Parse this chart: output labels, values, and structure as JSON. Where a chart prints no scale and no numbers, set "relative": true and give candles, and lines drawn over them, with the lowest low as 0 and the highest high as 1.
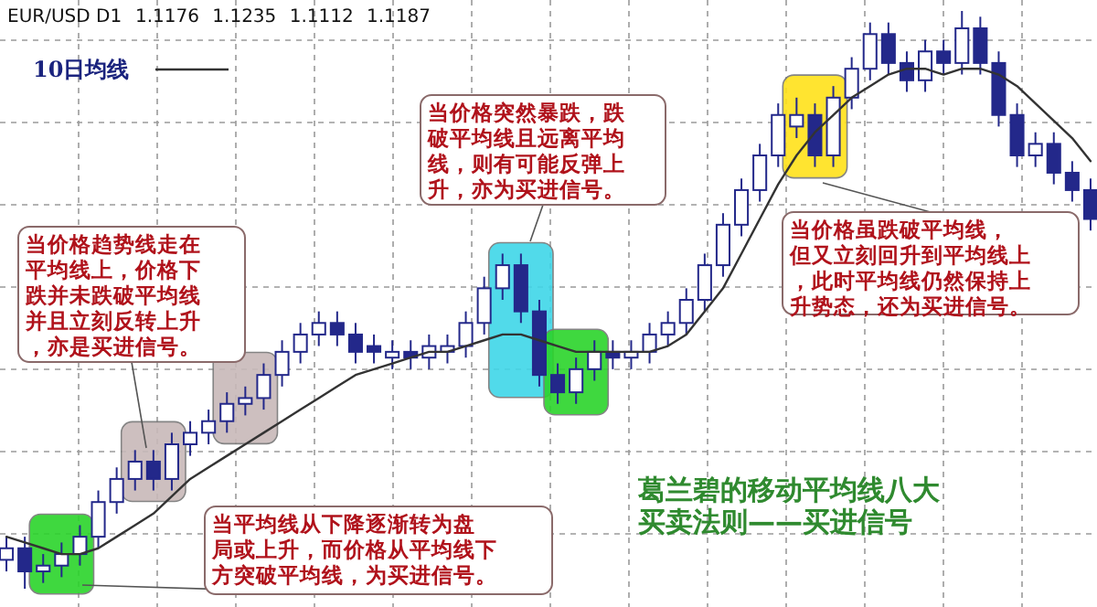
{
  "chart_data": {
    "type": "candlestick",
    "title": "EUR/USD D1",
    "subtitle": "1.1176 1.1235 1.1112 1.1187",
    "relative": true,
    "grid": true,
    "legend": "top left",
    "categories": [
      null,
      null,
      null,
      null,
      null,
      null,
      null,
      null,
      null,
      null,
      null,
      null,
      null,
      null,
      null,
      null,
      null,
      null,
      null,
      null,
      null,
      null,
      null,
      null,
      null,
      null,
      null,
      null,
      null,
      null,
      null,
      null,
      null,
      null,
      null,
      null,
      null,
      null,
      null,
      null,
      null,
      null,
      null,
      null,
      null,
      null,
      null,
      null,
      null,
      null,
      null,
      null,
      null,
      null,
      null,
      null,
      null,
      null,
      null,
      null
    ],
    "series": [
      {
        "color": "#23288a",
        "ohlc": [
          [
            0.05,
            0.09,
            0.03,
            0.07
          ],
          [
            0.07,
            0.09,
            0,
            0.03
          ],
          [
            0.03,
            0.06,
            0.01,
            0.04
          ],
          [
            0.04,
            0.08,
            0.02,
            0.06
          ],
          [
            0.06,
            0.11,
            0.04,
            0.09
          ],
          [
            0.09,
            0.17,
            0.07,
            0.15
          ],
          [
            0.15,
            0.21,
            0.13,
            0.19
          ],
          [
            0.19,
            0.24,
            0.17,
            0.22
          ],
          [
            0.22,
            0.24,
            0.17,
            0.19
          ],
          [
            0.19,
            0.27,
            0.17,
            0.25
          ],
          [
            0.25,
            0.29,
            0.23,
            0.27
          ],
          [
            0.27,
            0.31,
            0.25,
            0.29
          ],
          [
            0.29,
            0.34,
            0.27,
            0.32
          ],
          [
            0.32,
            0.35,
            0.3,
            0.33
          ],
          [
            0.33,
            0.39,
            0.31,
            0.37
          ],
          [
            0.37,
            0.43,
            0.35,
            0.41
          ],
          [
            0.41,
            0.46,
            0.39,
            0.44
          ],
          [
            0.44,
            0.48,
            0.42,
            0.46
          ],
          [
            0.46,
            0.48,
            0.42,
            0.44
          ],
          [
            0.44,
            0.46,
            0.39,
            0.41
          ],
          [
            0.42,
            0.44,
            0.39,
            0.41
          ],
          [
            0.4,
            0.43,
            0.38,
            0.41
          ],
          [
            0.41,
            0.43,
            0.38,
            0.4
          ],
          [
            0.4,
            0.44,
            0.38,
            0.42
          ],
          [
            0.41,
            0.44,
            0.39,
            0.42
          ],
          [
            0.42,
            0.48,
            0.4,
            0.46
          ],
          [
            0.46,
            0.54,
            0.44,
            0.52
          ],
          [
            0.52,
            0.58,
            0.5,
            0.56
          ],
          [
            0.56,
            0.58,
            0.46,
            0.48
          ],
          [
            0.48,
            0.5,
            0.35,
            0.37
          ],
          [
            0.37,
            0.39,
            0.32,
            0.34
          ],
          [
            0.34,
            0.4,
            0.32,
            0.38
          ],
          [
            0.38,
            0.43,
            0.36,
            0.41
          ],
          [
            0.41,
            0.43,
            0.38,
            0.4
          ],
          [
            0.4,
            0.43,
            0.38,
            0.41
          ],
          [
            0.41,
            0.46,
            0.39,
            0.44
          ],
          [
            0.44,
            0.48,
            0.42,
            0.46
          ],
          [
            0.46,
            0.52,
            0.44,
            0.5
          ],
          [
            0.5,
            0.58,
            0.48,
            0.56
          ],
          [
            0.56,
            0.65,
            0.54,
            0.63
          ],
          [
            0.63,
            0.71,
            0.61,
            0.69
          ],
          [
            0.69,
            0.77,
            0.67,
            0.75
          ],
          [
            0.75,
            0.84,
            0.73,
            0.82
          ],
          [
            0.8,
            0.85,
            0.78,
            0.82
          ],
          [
            0.82,
            0.84,
            0.73,
            0.75
          ],
          [
            0.75,
            0.87,
            0.73,
            0.85
          ],
          [
            0.85,
            0.92,
            0.83,
            0.9
          ],
          [
            0.9,
            0.98,
            0.88,
            0.96
          ],
          [
            0.96,
            0.98,
            0.89,
            0.91
          ],
          [
            0.91,
            0.93,
            0.86,
            0.88
          ],
          [
            0.88,
            0.95,
            0.86,
            0.93
          ],
          [
            0.93,
            0.95,
            0.89,
            0.91
          ],
          [
            0.91,
            1,
            0.89,
            0.97
          ],
          [
            0.97,
            0.99,
            0.89,
            0.91
          ],
          [
            0.91,
            0.93,
            0.8,
            0.82
          ],
          [
            0.82,
            0.84,
            0.73,
            0.75
          ],
          [
            0.75,
            0.79,
            0.73,
            0.77
          ],
          [
            0.77,
            0.79,
            0.7,
            0.72
          ],
          [
            0.72,
            0.74,
            0.67,
            0.69
          ],
          [
            0.69,
            0.71,
            0.62,
            0.64
          ]
        ]
      },
      {
        "type": "line",
        "name": "10日均线",
        "color": "#333333",
        "values": [
          0.09,
          0.08,
          0.07,
          0.06,
          0.06,
          0.07,
          0.09,
          0.11,
          0.13,
          0.16,
          0.19,
          0.21,
          0.23,
          0.25,
          0.27,
          0.29,
          0.31,
          0.33,
          0.35,
          0.37,
          0.38,
          0.39,
          0.4,
          0.41,
          0.41,
          0.42,
          0.43,
          0.44,
          0.44,
          0.43,
          0.42,
          0.41,
          0.41,
          0.41,
          0.41,
          0.41,
          0.42,
          0.44,
          0.48,
          0.52,
          0.58,
          0.64,
          0.7,
          0.75,
          0.79,
          0.82,
          0.85,
          0.87,
          0.89,
          0.9,
          0.9,
          0.89,
          0.9,
          0.9,
          0.89,
          0.87,
          0.84,
          0.81,
          0.78,
          0.74
        ]
      }
    ],
    "annotations": [
      "当价格趋势线走在平均线上，价格下跌并未跌破平均线并且立刻反转上升，亦是买进信号。",
      "当价格突然暴跌，跌破平均线且远离平均线，则有可能反弹上升，亦为买进信号。",
      "当价格虽跌破平均线，但又立刻回升到平均线上，此时平均线仍然保持上升势态，还为买进信号。",
      "当平均线从下降逐渐转为盘局或上升，而价格从平均线下方突破平均线，为买进信号。",
      "葛兰碧的移动平均线八大买卖法则——买进信号"
    ]
  }
}
